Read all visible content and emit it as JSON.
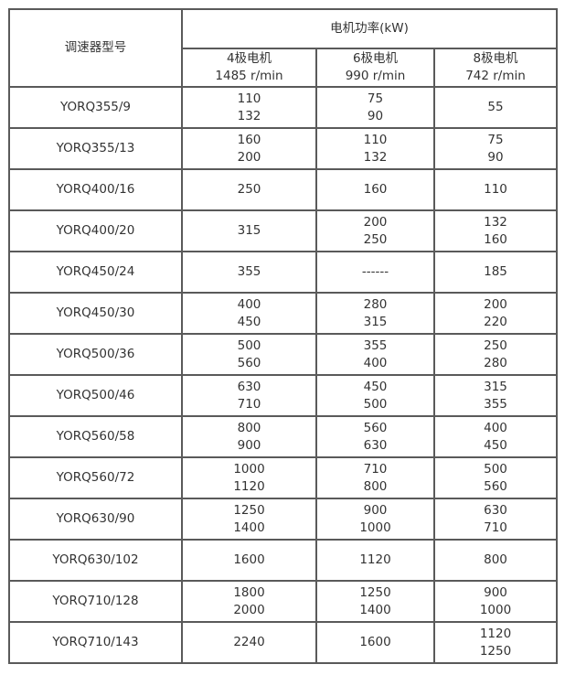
{
  "header": {
    "model_label": "调速器型号",
    "power_label": "电机功率(kW)",
    "columns": [
      {
        "poles": "4极电机",
        "speed": "1485 r/min"
      },
      {
        "poles": "6极电机",
        "speed": "990 r/min"
      },
      {
        "poles": "8极电机",
        "speed": "742 r/min"
      }
    ]
  },
  "rows": [
    {
      "model": "YORQ355/9",
      "p4": [
        "110",
        "132"
      ],
      "p6": [
        "75",
        "90"
      ],
      "p8": [
        "55"
      ]
    },
    {
      "model": "YORQ355/13",
      "p4": [
        "160",
        "200"
      ],
      "p6": [
        "110",
        "132"
      ],
      "p8": [
        "75",
        "90"
      ]
    },
    {
      "model": "YORQ400/16",
      "p4": [
        "250"
      ],
      "p6": [
        "160"
      ],
      "p8": [
        "110"
      ]
    },
    {
      "model": "YORQ400/20",
      "p4": [
        "315"
      ],
      "p6": [
        "200",
        "250"
      ],
      "p8": [
        "132",
        "160"
      ]
    },
    {
      "model": "YORQ450/24",
      "p4": [
        "355"
      ],
      "p6": [
        "------"
      ],
      "p8": [
        "185"
      ]
    },
    {
      "model": "YORQ450/30",
      "p4": [
        "400",
        "450"
      ],
      "p6": [
        "280",
        "315"
      ],
      "p8": [
        "200",
        "220"
      ]
    },
    {
      "model": "YORQ500/36",
      "p4": [
        "500",
        "560"
      ],
      "p6": [
        "355",
        "400"
      ],
      "p8": [
        "250",
        "280"
      ]
    },
    {
      "model": "YORQ500/46",
      "p4": [
        "630",
        "710"
      ],
      "p6": [
        "450",
        "500"
      ],
      "p8": [
        "315",
        "355"
      ]
    },
    {
      "model": "YORQ560/58",
      "p4": [
        "800",
        "900"
      ],
      "p6": [
        "560",
        "630"
      ],
      "p8": [
        "400",
        "450"
      ]
    },
    {
      "model": "YORQ560/72",
      "p4": [
        "1000",
        "1120"
      ],
      "p6": [
        "710",
        "800"
      ],
      "p8": [
        "500",
        "560"
      ]
    },
    {
      "model": "YORQ630/90",
      "p4": [
        "1250",
        "1400"
      ],
      "p6": [
        "900",
        "1000"
      ],
      "p8": [
        "630",
        "710"
      ]
    },
    {
      "model": "YORQ630/102",
      "p4": [
        "1600"
      ],
      "p6": [
        "1120"
      ],
      "p8": [
        "800"
      ]
    },
    {
      "model": "YORQ710/128",
      "p4": [
        "1800",
        "2000"
      ],
      "p6": [
        "1250",
        "1400"
      ],
      "p8": [
        "900",
        "1000"
      ]
    },
    {
      "model": "YORQ710/143",
      "p4": [
        "2240"
      ],
      "p6": [
        "1600"
      ],
      "p8": [
        "1120",
        "1250"
      ]
    }
  ]
}
